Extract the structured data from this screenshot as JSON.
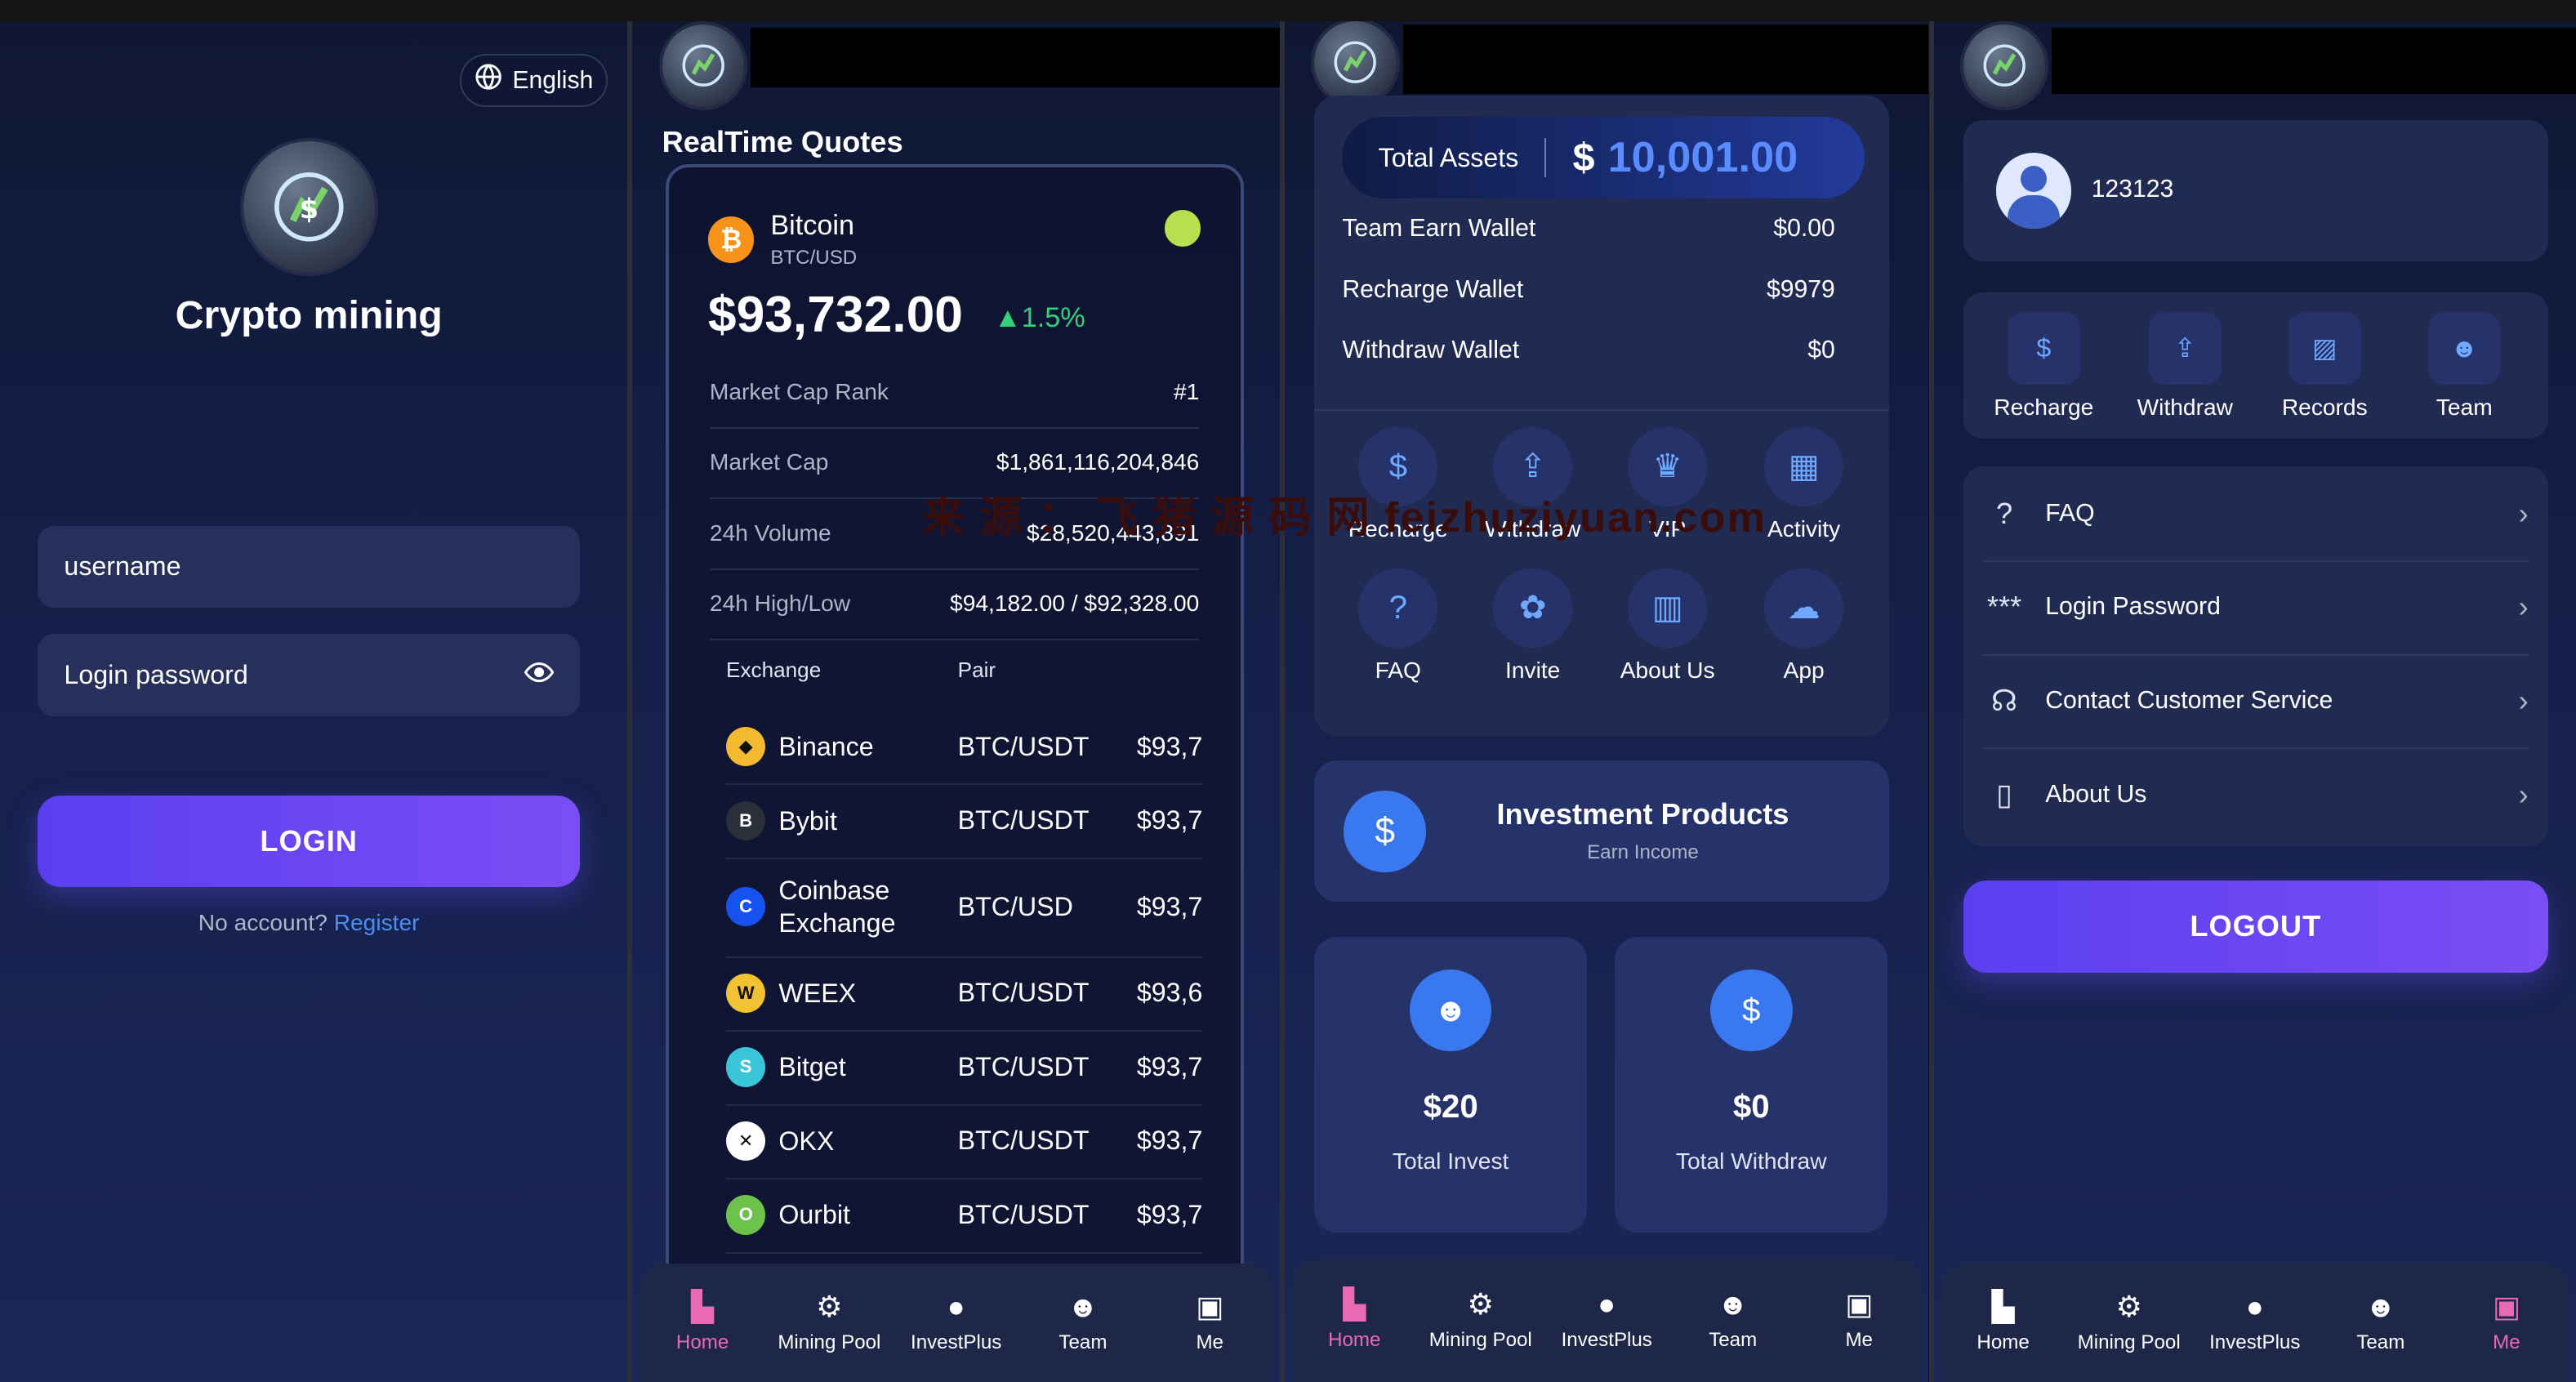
{
  "colors": {
    "accent": "#7b4df5",
    "link": "#4d8ff0",
    "positive": "#32d07a",
    "active_nav": "#e86ab4",
    "card": "#212b52"
  },
  "login": {
    "lang": "English",
    "app_name": "Crypto mining",
    "username_placeholder": "username",
    "password_placeholder": "Login password",
    "login_btn": "LOGIN",
    "no_account": "No account?",
    "register": "Register"
  },
  "quotes": {
    "title": "RealTime Quotes",
    "coin_name": "Bitcoin",
    "coin_pair": "BTC/USD",
    "coin_symbol": "₿",
    "price": "$93,732.00",
    "change": "1.5%",
    "rows": [
      {
        "label": "Market Cap Rank",
        "value": "#1"
      },
      {
        "label": "Market Cap",
        "value": "$1,861,116,204,846"
      },
      {
        "label": "24h Volume",
        "value": "$28,520,443,891"
      },
      {
        "label": "24h High/Low",
        "value": "$94,182.00 / $92,328.00"
      }
    ],
    "col_exchange": "Exchange",
    "col_pair": "Pair",
    "exchanges": [
      {
        "name": "Binance",
        "pair": "BTC/USDT",
        "price": "$93,7",
        "icon": "◆",
        "color": "#f3ba2f"
      },
      {
        "name": "Bybit",
        "pair": "BTC/USDT",
        "price": "$93,7",
        "icon": "B",
        "color": "#2a2f3a"
      },
      {
        "name": "Coinbase Exchange",
        "pair": "BTC/USD",
        "price": "$93,7",
        "icon": "C",
        "color": "#1652f0"
      },
      {
        "name": "WEEX",
        "pair": "BTC/USDT",
        "price": "$93,6",
        "icon": "W",
        "color": "#f1c232"
      },
      {
        "name": "Bitget",
        "pair": "BTC/USDT",
        "price": "$93,7",
        "icon": "S",
        "color": "#3bc5d9"
      },
      {
        "name": "OKX",
        "pair": "BTC/USDT",
        "price": "$93,7",
        "icon": "✕",
        "color": "#ffffff"
      },
      {
        "name": "Ourbit",
        "pair": "BTC/USDT",
        "price": "$93,7",
        "icon": "O",
        "color": "#6cc24a"
      }
    ]
  },
  "nav": [
    {
      "label": "Home",
      "icon": "home-icon"
    },
    {
      "label": "Mining Pool",
      "icon": "chip-icon"
    },
    {
      "label": "InvestPlus",
      "icon": "bulb-icon"
    },
    {
      "label": "Team",
      "icon": "team-icon"
    },
    {
      "label": "Me",
      "icon": "user-icon"
    }
  ],
  "home": {
    "total_assets_label": "Total Assets",
    "currency": "$",
    "total_assets_value": "10,001.00",
    "wallets": [
      {
        "label": "Team Earn Wallet",
        "value": "$0.00"
      },
      {
        "label": "Recharge Wallet",
        "value": "$9979"
      },
      {
        "label": "Withdraw Wallet",
        "value": "$0"
      }
    ],
    "quick": [
      {
        "label": "Recharge",
        "icon": "wallet-icon"
      },
      {
        "label": "Withdraw",
        "icon": "withdraw-icon"
      },
      {
        "label": "VIP",
        "icon": "crown-icon"
      },
      {
        "label": "Activity",
        "icon": "calendar-icon"
      },
      {
        "label": "FAQ",
        "icon": "question-icon"
      },
      {
        "label": "Invite",
        "icon": "invite-icon"
      },
      {
        "label": "About Us",
        "icon": "building-icon"
      },
      {
        "label": "App",
        "icon": "download-icon"
      }
    ],
    "invest_title": "Investment Products",
    "invest_sub": "Earn Income",
    "stats": [
      {
        "value": "$20",
        "label": "Total Invest"
      },
      {
        "value": "$0",
        "label": "Total Withdraw"
      }
    ]
  },
  "me": {
    "user_id": "123123",
    "actions": [
      {
        "label": "Recharge",
        "icon": "wallet-icon"
      },
      {
        "label": "Withdraw",
        "icon": "withdraw-icon"
      },
      {
        "label": "Records",
        "icon": "records-icon"
      },
      {
        "label": "Team",
        "icon": "team-icon"
      }
    ],
    "menu": [
      {
        "label": "FAQ",
        "icon": "question-icon"
      },
      {
        "label": "Login Password",
        "icon": "password-icon"
      },
      {
        "label": "Contact Customer Service",
        "icon": "headset-icon"
      },
      {
        "label": "About Us",
        "icon": "book-icon"
      }
    ],
    "logout": "LOGOUT"
  },
  "watermark": "来 源 ： 飞 猪 源 码 网 feizhuziyuan.com"
}
